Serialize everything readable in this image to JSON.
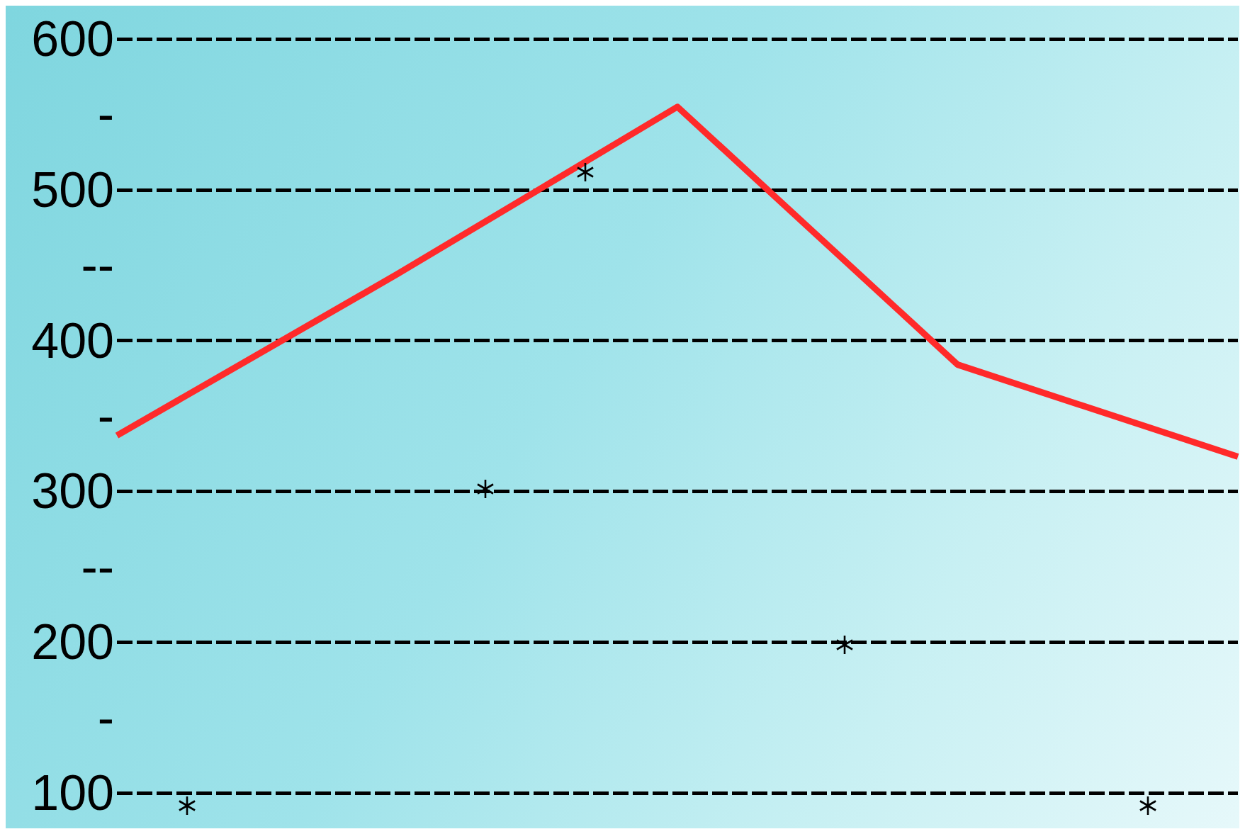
{
  "chart_data": {
    "type": "line",
    "tick_labels": "y",
    "grid": "y",
    "marker": "none",
    "categories": [
      null,
      null,
      null,
      null,
      null
    ],
    "ylim": [
      100,
      600
    ],
    "yticks": [
      100,
      {
        "value": 150,
        "label": "-"
      },
      200,
      {
        "value": 250,
        "label": "--"
      },
      300,
      {
        "value": 350,
        "label": "-"
      },
      400,
      {
        "value": 450,
        "label": "--"
      },
      500,
      {
        "value": 550,
        "label": "-"
      },
      600
    ],
    "series": [
      {
        "color": "#ff2a2a",
        "values": [
          337,
          444,
          555,
          384,
          323
        ]
      }
    ]
  }
}
